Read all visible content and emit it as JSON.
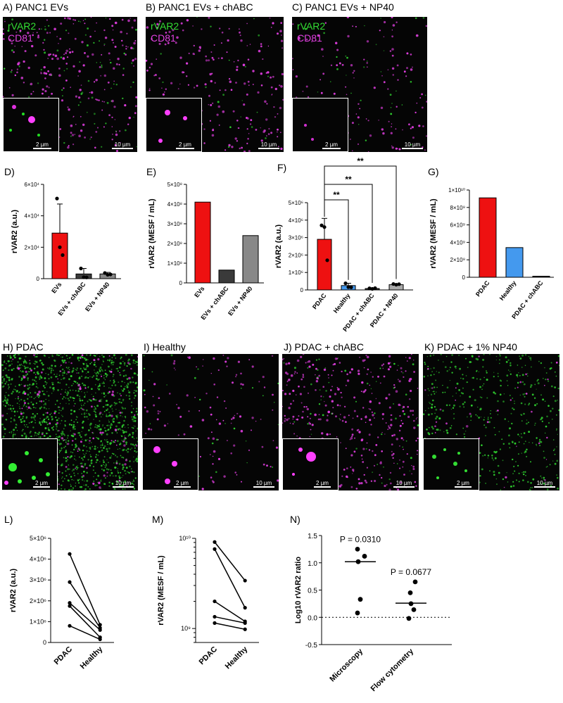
{
  "panels": {
    "A": {
      "label": "A) PANC1 EVs",
      "ch1": "rVAR2",
      "ch2": "CD81",
      "scale_main": "10 µm",
      "scale_inset": "2 µm"
    },
    "B": {
      "label": "B) PANC1 EVs + chABC",
      "ch1": "rVAR2",
      "ch2": "CD81",
      "scale_main": "10 µm",
      "scale_inset": "2 µm"
    },
    "C": {
      "label": "C) PANC1 EVs + NP40",
      "ch1": "rVAR2",
      "ch2": "CD81",
      "scale_main": "10 µm",
      "scale_inset": "2 µm"
    },
    "D": {
      "label": "D)"
    },
    "E": {
      "label": "E)"
    },
    "F": {
      "label": "F)"
    },
    "G": {
      "label": "G)"
    },
    "H": {
      "label": "H) PDAC",
      "scale_main": "10 µm",
      "scale_inset": "2 µm"
    },
    "I": {
      "label": "I) Healthy",
      "scale_main": "10 µm",
      "scale_inset": "2 µm"
    },
    "J": {
      "label": "J) PDAC + chABC",
      "scale_main": "10 µm",
      "scale_inset": "2 µm"
    },
    "K": {
      "label": "K) PDAC + 1% NP40",
      "scale_main": "10 µm",
      "scale_inset": "2 µm"
    },
    "L": {
      "label": "L)"
    },
    "M": {
      "label": "M)"
    },
    "N": {
      "label": "N)"
    }
  },
  "chart_data": [
    {
      "id": "D",
      "type": "bar",
      "ylabel": "rVAR2 (a.u.)",
      "categories": [
        "EVs",
        "EVs + chABC",
        "EVs + NP40"
      ],
      "values": [
        29000,
        3000,
        3000
      ],
      "errors": [
        18500,
        3500,
        1000
      ],
      "colors": [
        "#ee1111",
        "#3a3a3a",
        "#888888"
      ],
      "points": [
        [
          51000,
          20000,
          15000
        ],
        [
          6500,
          900,
          800
        ],
        [
          3600,
          2500,
          2700
        ]
      ],
      "ylim": [
        0,
        60000
      ],
      "yticks": [
        "0",
        "2×10⁴",
        "4×10⁴",
        "6×10⁴"
      ]
    },
    {
      "id": "E",
      "type": "bar",
      "ylabel": "rVAR2 (MESF / mL)",
      "categories": [
        "EVs",
        "EVs + chABC",
        "EVs + NP40"
      ],
      "values": [
        410000000,
        65000000,
        240000000
      ],
      "colors": [
        "#ee1111",
        "#3a3a3a",
        "#888888"
      ],
      "ylim": [
        0,
        500000000
      ],
      "yticks": [
        "0",
        "1×10⁸",
        "2×10⁸",
        "3×10⁸",
        "4×10⁸",
        "5×10⁸"
      ]
    },
    {
      "id": "F",
      "type": "bar",
      "ylabel": "rVAR2 (a.u.)",
      "categories": [
        "PDAC",
        "Healthy",
        "PDAC + chABC",
        "PDAC + NP40"
      ],
      "values": [
        2900000,
        250000,
        80000,
        300000
      ],
      "errors": [
        1200000,
        130000,
        30000,
        60000
      ],
      "colors": [
        "#ee1111",
        "#4499ee",
        "#3a3a3a",
        "#aaaaaa"
      ],
      "points": [
        [
          3700000,
          3600000,
          1700000
        ],
        [
          380000,
          160000,
          150000
        ],
        [
          90000,
          60000,
          100000
        ],
        [
          340000,
          300000,
          330000
        ]
      ],
      "ylim": [
        0,
        5000000
      ],
      "yticks": [
        "0",
        "1×10⁶",
        "2×10⁶",
        "3×10⁶",
        "4×10⁶",
        "5×10⁶"
      ],
      "significance": [
        "**",
        "**",
        "**"
      ]
    },
    {
      "id": "G",
      "type": "bar",
      "ylabel": "rVAR2 (MESF / mL)",
      "categories": [
        "PDAC",
        "Healthy",
        "PDAC + chABC"
      ],
      "values": [
        9100000000,
        3400000000,
        120000000
      ],
      "colors": [
        "#ee1111",
        "#4499ee",
        "#3a3a3a"
      ],
      "ylim": [
        0,
        10000000000
      ],
      "yticks": [
        "0",
        "2×10⁹",
        "4×10⁹",
        "6×10⁹",
        "8×10⁹",
        "1×10¹⁰"
      ]
    },
    {
      "id": "L",
      "type": "line",
      "ylabel": "rVAR2 (a.u.)",
      "categories": [
        "PDAC",
        "Healthy"
      ],
      "series": [
        {
          "values": [
            4250000,
            850000
          ]
        },
        {
          "values": [
            2900000,
            700000
          ]
        },
        {
          "values": [
            1900000,
            600000
          ]
        },
        {
          "values": [
            1750000,
            250000
          ]
        },
        {
          "values": [
            800000,
            150000
          ]
        }
      ],
      "ylim": [
        0,
        5000000
      ],
      "yticks": [
        "0",
        "1×10⁶",
        "2×10⁶",
        "3×10⁶",
        "4×10⁶",
        "5×10⁶"
      ]
    },
    {
      "id": "M",
      "type": "line",
      "ylabel": "rVAR2 (MESF / mL)",
      "log_scale": true,
      "categories": [
        "PDAC",
        "Healthy"
      ],
      "series": [
        {
          "values": [
            9100000000,
            3400000000
          ]
        },
        {
          "values": [
            7600000000,
            1700000000
          ]
        },
        {
          "values": [
            2000000000,
            1200000000
          ]
        },
        {
          "values": [
            1350000000,
            1150000000
          ]
        },
        {
          "values": [
            1150000000,
            980000000
          ]
        }
      ],
      "ylim": [
        700000000,
        10000000000
      ],
      "yticks": [
        "10⁹",
        "10¹⁰"
      ]
    },
    {
      "id": "N",
      "type": "scatter",
      "ylabel": "Log10 rVAR2 ratio",
      "categories": [
        "Microscopy",
        "Flow cytometry"
      ],
      "points": [
        [
          1.25,
          1.12,
          1.02,
          0.33,
          0.08
        ],
        [
          0.65,
          0.45,
          0.25,
          0.14,
          -0.02
        ]
      ],
      "medians": [
        1.02,
        0.26
      ],
      "pvalues": [
        "P = 0.0310",
        "P = 0.0677"
      ],
      "ylim": [
        -0.5,
        1.5
      ],
      "yticks": [
        "-0.5",
        "0.0",
        "0.5",
        "1.0",
        "1.5"
      ]
    }
  ]
}
